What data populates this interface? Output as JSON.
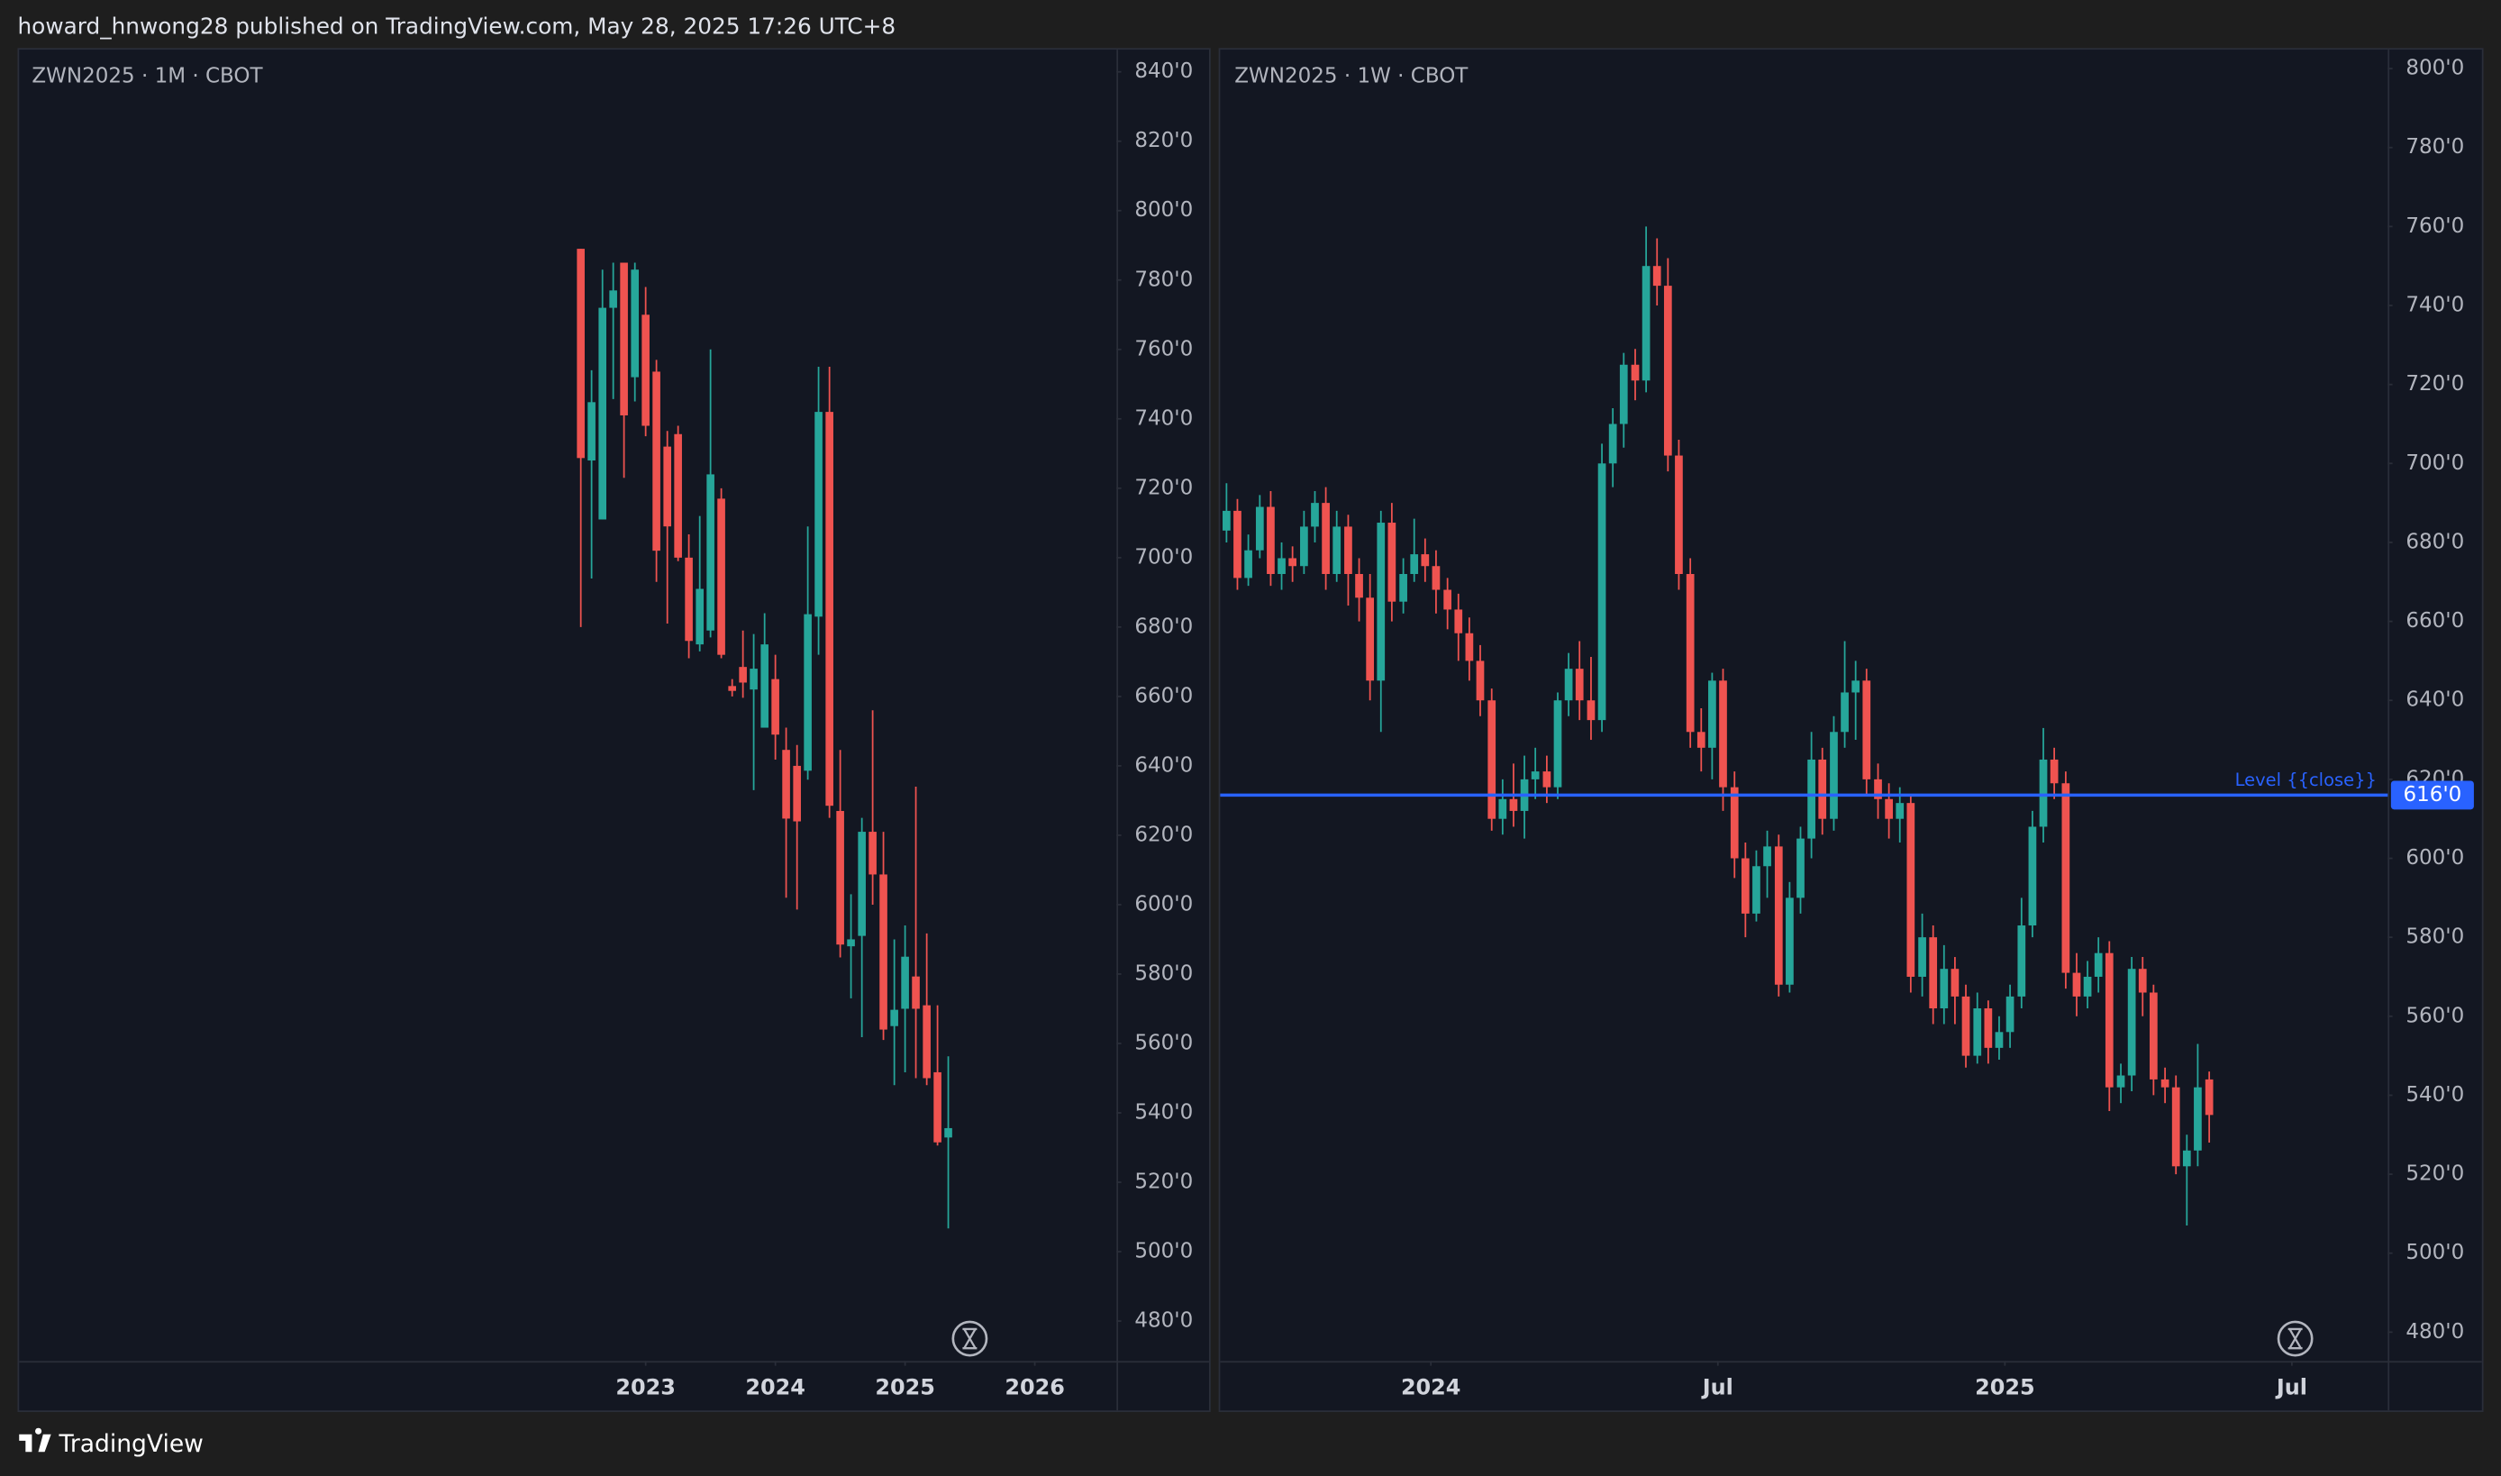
{
  "header": "howard_hnwong28 published on TradingView.com, May 28, 2025 17:26 UTC+8",
  "footer": "TradingView",
  "chart_data": [
    {
      "type": "candlestick",
      "title": "ZWN2025 · 1M · CBOT",
      "up_color": "#26a69a",
      "down_color": "#ef5350",
      "x": [
        2022.5,
        2022.583,
        2022.667,
        2022.75,
        2022.833,
        2022.917,
        2023,
        2023.083,
        2023.167,
        2023.25,
        2023.333,
        2023.417,
        2023.5,
        2023.583,
        2023.667,
        2023.75,
        2023.833,
        2023.917,
        2024,
        2024.083,
        2024.167,
        2024.25,
        2024.333,
        2024.417,
        2024.5,
        2024.583,
        2024.667,
        2024.75,
        2024.833,
        2024.917,
        2025,
        2025.083,
        2025.167,
        2025.25,
        2025.333
      ],
      "open": [
        789,
        728,
        711,
        772,
        785,
        752,
        770,
        753.6,
        732,
        735.6,
        700,
        675,
        679,
        717,
        663,
        668.5,
        662,
        651,
        665,
        644.6,
        640,
        638.6,
        683,
        742,
        627,
        588,
        591,
        621,
        608.7,
        565,
        570,
        579.3,
        571,
        551.7,
        532.9
      ],
      "high": [
        789,
        754,
        783,
        785,
        785,
        785,
        778,
        757,
        736.5,
        738,
        706.7,
        712,
        760,
        720,
        665,
        679,
        678,
        684,
        672,
        651,
        646,
        709,
        755,
        755,
        644.6,
        603,
        625,
        656,
        621,
        590,
        594,
        634,
        591.7,
        571,
        556.3
      ],
      "low": [
        680,
        694,
        711,
        745.7,
        723,
        745,
        735,
        693,
        681,
        699,
        671,
        673,
        677,
        671,
        660,
        659.6,
        633,
        651,
        641.8,
        602,
        598.6,
        636,
        672,
        625,
        584.8,
        573,
        561.8,
        600,
        561,
        548,
        551.7,
        550,
        548,
        530.6,
        506.7
      ],
      "close": [
        728.7,
        744.8,
        772,
        777,
        741,
        783,
        738,
        702,
        709,
        700,
        676,
        691,
        724,
        672,
        661.6,
        664,
        668,
        675,
        649,
        624.8,
        624,
        683.7,
        742,
        628.5,
        588.5,
        590,
        621,
        608.7,
        564,
        569.7,
        585,
        570,
        550,
        531.5,
        535.6
      ],
      "xlim": [
        2018.17,
        2026.63
      ],
      "ylim": [
        468.5,
        846.4
      ],
      "xticks": [
        2023,
        2024,
        2025,
        2026
      ],
      "yticks": [
        {
          "value": 480,
          "label": "480'0"
        },
        {
          "value": 500,
          "label": "500'0"
        },
        {
          "value": 520,
          "label": "520'0"
        },
        {
          "value": 540,
          "label": "540'0"
        },
        {
          "value": 560,
          "label": "560'0"
        },
        {
          "value": 580,
          "label": "580'0"
        },
        {
          "value": 600,
          "label": "600'0"
        },
        {
          "value": 620,
          "label": "620'0"
        },
        {
          "value": 640,
          "label": "640'0"
        },
        {
          "value": 660,
          "label": "660'0"
        },
        {
          "value": 680,
          "label": "680'0"
        },
        {
          "value": 700,
          "label": "700'0"
        },
        {
          "value": 720,
          "label": "720'0"
        },
        {
          "value": 740,
          "label": "740'0"
        },
        {
          "value": 760,
          "label": "760'0"
        },
        {
          "value": 780,
          "label": "780'0"
        },
        {
          "value": 800,
          "label": "800'0"
        },
        {
          "value": 820,
          "label": "820'0"
        },
        {
          "value": 840,
          "label": "840'0"
        }
      ]
    },
    {
      "type": "candlestick",
      "title": "ZWN2025 · 1W · CBOT",
      "up_color": "#26a69a",
      "down_color": "#ef5350",
      "x": [
        2023.644,
        2023.663,
        2023.682,
        2023.702,
        2023.721,
        2023.74,
        2023.759,
        2023.779,
        2023.798,
        2023.817,
        2023.836,
        2023.856,
        2023.875,
        2023.894,
        2023.913,
        2023.932,
        2023.952,
        2023.971,
        2023.99,
        2024.009,
        2024.029,
        2024.048,
        2024.067,
        2024.086,
        2024.106,
        2024.125,
        2024.144,
        2024.163,
        2024.182,
        2024.202,
        2024.221,
        2024.24,
        2024.259,
        2024.279,
        2024.298,
        2024.317,
        2024.336,
        2024.356,
        2024.375,
        2024.394,
        2024.413,
        2024.432,
        2024.452,
        2024.471,
        2024.49,
        2024.509,
        2024.529,
        2024.548,
        2024.567,
        2024.586,
        2024.606,
        2024.625,
        2024.644,
        2024.663,
        2024.682,
        2024.702,
        2024.721,
        2024.74,
        2024.759,
        2024.779,
        2024.798,
        2024.817,
        2024.836,
        2024.856,
        2024.875,
        2024.894,
        2024.913,
        2024.932,
        2024.952,
        2024.971,
        2024.99,
        2025.009,
        2025.029,
        2025.048,
        2025.067,
        2025.086,
        2025.106,
        2025.125,
        2025.144,
        2025.163,
        2025.182,
        2025.202,
        2025.221,
        2025.24,
        2025.259,
        2025.279,
        2025.298,
        2025.317,
        2025.336,
        2025.356
      ],
      "open": [
        683,
        688,
        671,
        678,
        689,
        672,
        676,
        674,
        684,
        690,
        672,
        684,
        672,
        666,
        645,
        685,
        665,
        672,
        677,
        674,
        668,
        663,
        657,
        650,
        640,
        610,
        615,
        612,
        620,
        622,
        618,
        640,
        648,
        640,
        635,
        700,
        710,
        725,
        721,
        750,
        745,
        702,
        672,
        632,
        628,
        645,
        618,
        600,
        586,
        598,
        603,
        568,
        590,
        605,
        625,
        610,
        632,
        642,
        645,
        620,
        615,
        610,
        614,
        570,
        580,
        562,
        572,
        565,
        550,
        562,
        552,
        556,
        565,
        583,
        608,
        625,
        619,
        571,
        565,
        570,
        576,
        542,
        545,
        572,
        566,
        544,
        542,
        522,
        526,
        544
      ],
      "high": [
        695,
        691,
        682,
        692,
        693,
        680,
        679,
        688,
        693,
        694,
        688,
        687,
        676,
        672,
        688,
        690,
        676,
        686,
        681,
        678,
        671,
        667,
        661,
        654,
        643,
        620,
        624,
        626,
        628,
        626,
        642,
        652,
        655,
        651,
        705,
        714,
        728,
        729,
        760,
        757,
        752,
        706,
        676,
        638,
        647,
        648,
        622,
        604,
        602,
        607,
        606,
        594,
        608,
        632,
        628,
        636,
        655,
        650,
        648,
        624,
        619,
        618,
        616,
        586,
        583,
        578,
        575,
        568,
        566,
        564,
        560,
        568,
        590,
        612,
        633,
        628,
        622,
        576,
        574,
        580,
        579,
        548,
        575,
        575,
        568,
        547,
        545,
        530,
        553,
        546
      ],
      "low": [
        680,
        668,
        669,
        676,
        669,
        668,
        670,
        672,
        680,
        668,
        670,
        664,
        660,
        640,
        632,
        660,
        662,
        670,
        670,
        662,
        658,
        650,
        645,
        636,
        607,
        606,
        608,
        605,
        615,
        614,
        615,
        636,
        635,
        630,
        632,
        694,
        704,
        716,
        718,
        740,
        698,
        668,
        628,
        622,
        620,
        612,
        595,
        580,
        584,
        590,
        565,
        566,
        586,
        600,
        606,
        607,
        628,
        630,
        616,
        610,
        605,
        604,
        566,
        565,
        558,
        558,
        558,
        547,
        548,
        548,
        549,
        552,
        562,
        580,
        604,
        615,
        567,
        560,
        562,
        566,
        536,
        538,
        541,
        560,
        540,
        538,
        520,
        507,
        522,
        528
      ],
      "close": [
        688,
        671,
        678,
        689,
        672,
        676,
        674,
        684,
        690,
        672,
        684,
        672,
        666,
        645,
        685,
        665,
        672,
        677,
        674,
        668,
        663,
        657,
        650,
        640,
        610,
        615,
        612,
        620,
        622,
        618,
        640,
        648,
        640,
        635,
        700,
        710,
        725,
        721,
        750,
        745,
        702,
        672,
        632,
        628,
        645,
        618,
        600,
        586,
        598,
        603,
        568,
        590,
        605,
        625,
        610,
        632,
        642,
        645,
        620,
        615,
        610,
        614,
        570,
        580,
        562,
        572,
        565,
        550,
        562,
        552,
        556,
        565,
        583,
        608,
        625,
        619,
        571,
        565,
        570,
        576,
        542,
        545,
        572,
        566,
        544,
        542,
        522,
        526,
        542,
        535
      ],
      "xlim": [
        2023.633,
        2025.667
      ],
      "ylim": [
        472.7,
        804.8
      ],
      "xticks": [
        2024,
        {
          "value": 2024.5,
          "label": "Jul"
        },
        2025,
        {
          "value": 2025.5,
          "label": "Jul"
        }
      ],
      "yticks": [
        {
          "value": 480,
          "label": "480'0"
        },
        {
          "value": 500,
          "label": "500'0"
        },
        {
          "value": 520,
          "label": "520'0"
        },
        {
          "value": 540,
          "label": "540'0"
        },
        {
          "value": 560,
          "label": "560'0"
        },
        {
          "value": 580,
          "label": "580'0"
        },
        {
          "value": 600,
          "label": "600'0"
        },
        {
          "value": 620,
          "label": "620'0"
        },
        {
          "value": 640,
          "label": "640'0"
        },
        {
          "value": 660,
          "label": "660'0"
        },
        {
          "value": 680,
          "label": "680'0"
        },
        {
          "value": 700,
          "label": "700'0"
        },
        {
          "value": 720,
          "label": "720'0"
        },
        {
          "value": 740,
          "label": "740'0"
        },
        {
          "value": 760,
          "label": "760'0"
        },
        {
          "value": 780,
          "label": "780'0"
        },
        {
          "value": 800,
          "label": "800'0"
        }
      ],
      "level": {
        "value": 616,
        "label": "616'0",
        "text": "Level {{close}}",
        "color": "#2962ff"
      }
    }
  ]
}
